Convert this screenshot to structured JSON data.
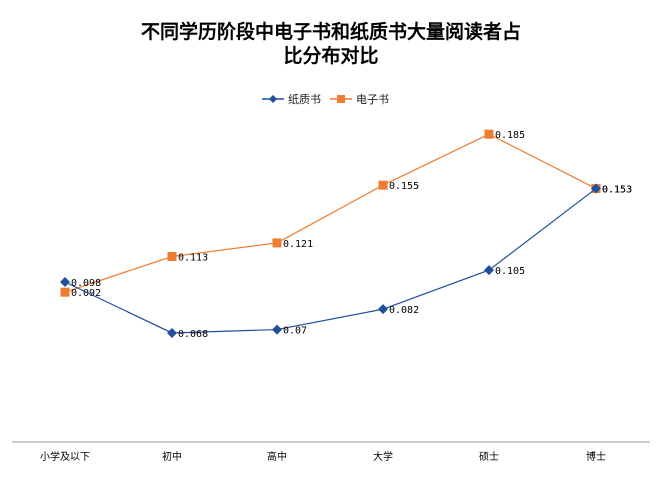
{
  "chart_data": {
    "type": "line",
    "title_line1": "不同学历阶段中电子书和纸质书大量阅读者占",
    "title_line2": "比分布对比",
    "categories": [
      "小学及以下",
      "初中",
      "高中",
      "大学",
      "硕士",
      "博士"
    ],
    "series": [
      {
        "name": "纸质书",
        "values": [
          0.098,
          0.068,
          0.07,
          0.082,
          0.105,
          0.153
        ],
        "labels": [
          "0.098",
          "0.068",
          "0.07",
          "0.082",
          "0.105",
          "0.153"
        ],
        "color": "#1f4e9c",
        "marker": "diamond"
      },
      {
        "name": "电子书",
        "values": [
          0.092,
          0.113,
          0.121,
          0.155,
          0.185,
          0.153
        ],
        "labels": [
          "0.092",
          "0.113",
          "0.121",
          "0.155",
          "0.185",
          "0.153"
        ],
        "color": "#ed7d31",
        "marker": "square"
      }
    ],
    "legend_position": "top",
    "grid": false,
    "xlabel": "",
    "ylabel": ""
  }
}
